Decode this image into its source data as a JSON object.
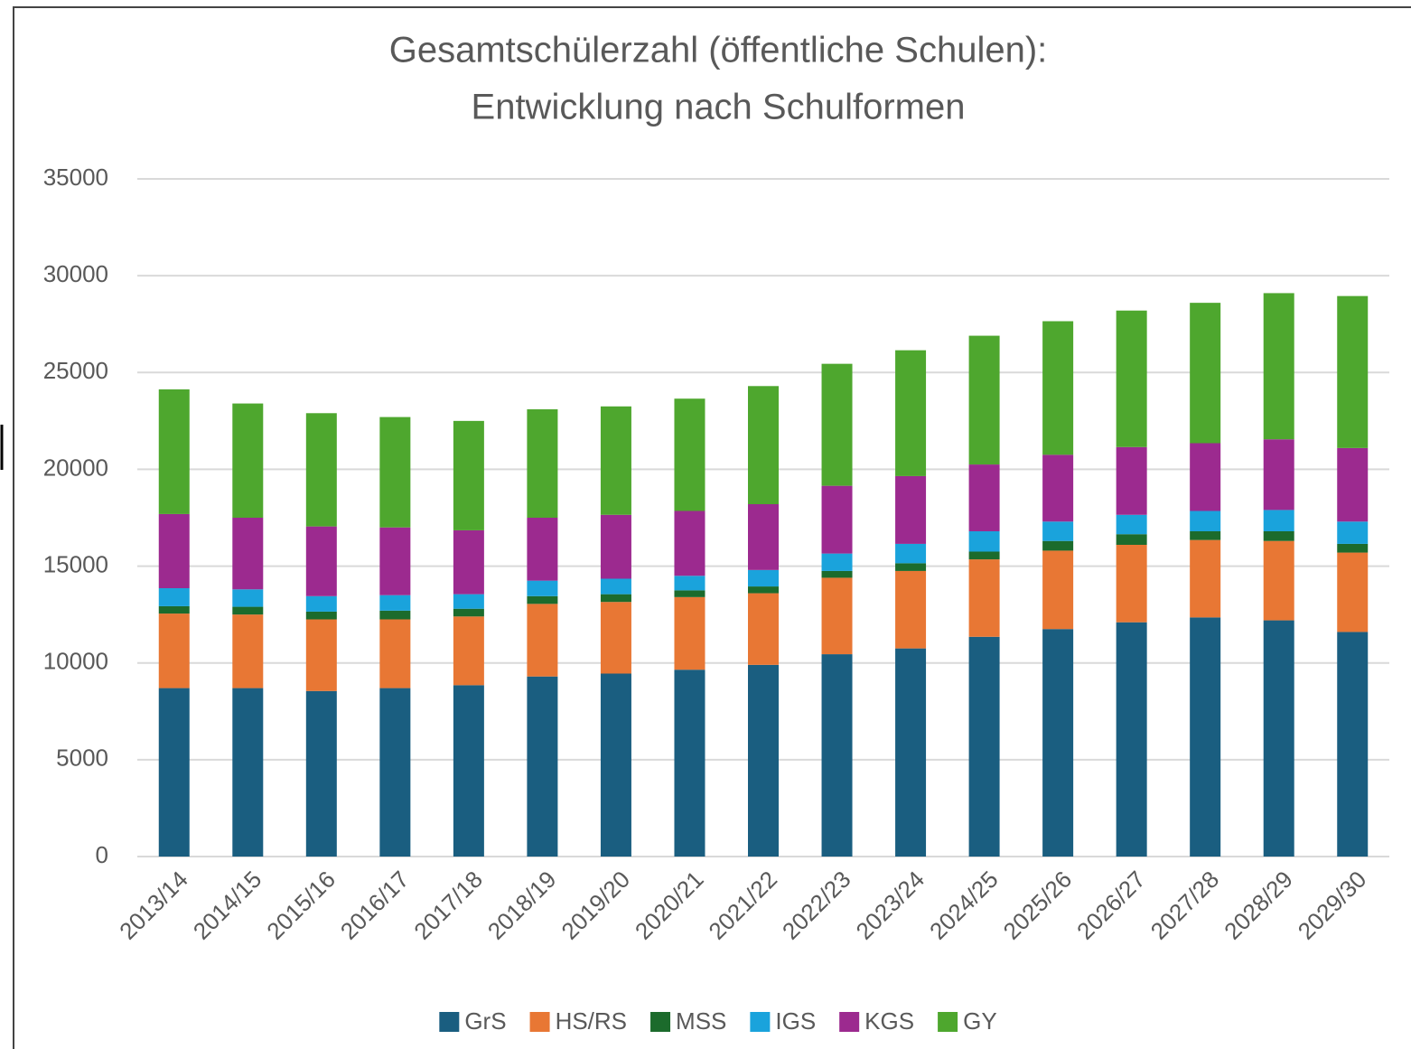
{
  "chart_data": {
    "type": "stacked_bar",
    "title": [
      "Gesamtschülerzahl (öffentliche Schulen):",
      "Entwicklung nach Schulformen"
    ],
    "categories": [
      "2013/14",
      "2014/15",
      "2015/16",
      "2016/17",
      "2017/18",
      "2018/19",
      "2019/20",
      "2020/21",
      "2021/22",
      "2022/23",
      "2023/24",
      "2024/25",
      "2025/26",
      "2026/27",
      "2027/28",
      "2028/29",
      "2029/30"
    ],
    "series": [
      {
        "name": "GrS",
        "color": "#1a5e80",
        "values": [
          8700,
          8700,
          8550,
          8700,
          8850,
          9300,
          9450,
          9650,
          9900,
          10450,
          10750,
          11350,
          11750,
          12100,
          12350,
          12200,
          11600
        ]
      },
      {
        "name": "HS/RS",
        "color": "#e87734",
        "values": [
          3850,
          3800,
          3700,
          3550,
          3550,
          3750,
          3700,
          3750,
          3700,
          3950,
          4000,
          4000,
          4050,
          4000,
          4000,
          4100,
          4100
        ]
      },
      {
        "name": "MSS",
        "color": "#1c6b2c",
        "values": [
          380,
          400,
          400,
          450,
          400,
          400,
          400,
          350,
          350,
          350,
          400,
          400,
          500,
          550,
          450,
          500,
          450
        ]
      },
      {
        "name": "IGS",
        "color": "#1aa3dc",
        "values": [
          930,
          900,
          800,
          800,
          750,
          800,
          800,
          750,
          850,
          900,
          1000,
          1050,
          1000,
          1000,
          1050,
          1100,
          1150
        ]
      },
      {
        "name": "KGS",
        "color": "#9c2a8f",
        "values": [
          3830,
          3700,
          3600,
          3500,
          3300,
          3250,
          3300,
          3350,
          3400,
          3500,
          3500,
          3450,
          3450,
          3500,
          3500,
          3650,
          3800
        ]
      },
      {
        "name": "GY",
        "color": "#4ea72e",
        "values": [
          6440,
          5900,
          5850,
          5700,
          5650,
          5600,
          5600,
          5800,
          6100,
          6300,
          6500,
          6650,
          6900,
          7050,
          7250,
          7550,
          7850
        ]
      }
    ],
    "ylim": [
      0,
      35000
    ],
    "yticks": [
      0,
      5000,
      10000,
      15000,
      20000,
      25000,
      30000,
      35000
    ],
    "grid": true,
    "legend": "bottom"
  }
}
